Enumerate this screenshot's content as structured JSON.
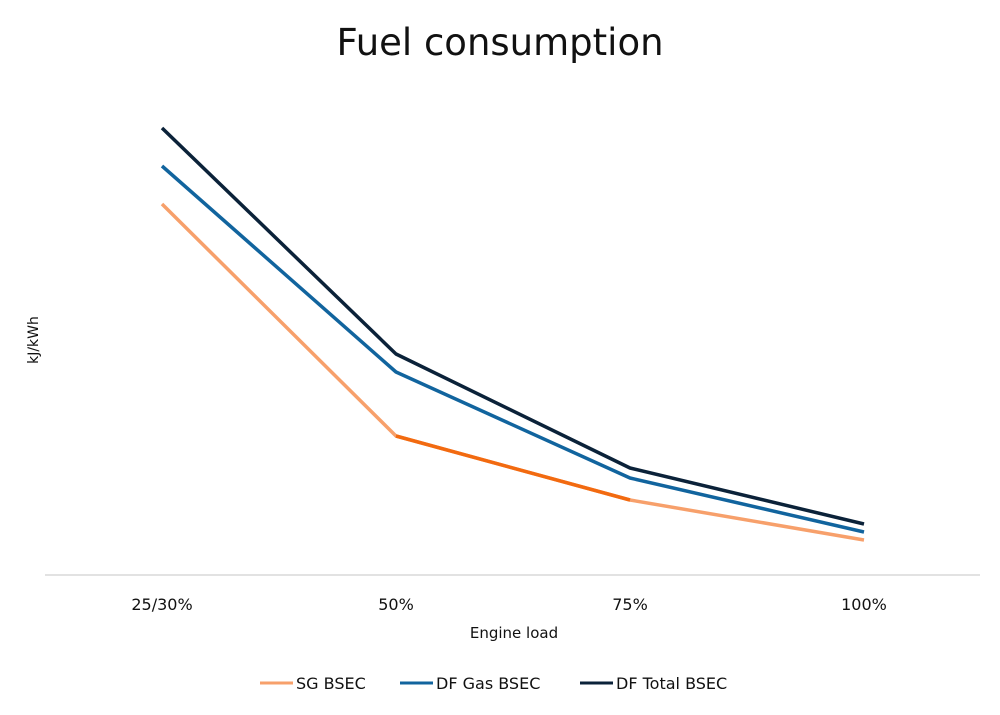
{
  "chart_data": {
    "type": "line",
    "title": "Fuel consumption",
    "xlabel": "Engine load",
    "ylabel": "kJ/kWh",
    "categories": [
      "25/30%",
      "50%",
      "75%",
      "100%"
    ],
    "y_ticks_shown": false,
    "ylim": [
      0,
      460
    ],
    "grid": false,
    "legend": "bottom",
    "series": [
      {
        "name": "SG BSEC",
        "color": "#f7a06b",
        "values": [
          371,
          139,
          75,
          35
        ],
        "highlight_segment": {
          "from": "50%",
          "to": "75%",
          "color": "#f26a10"
        }
      },
      {
        "name": "DF Gas BSEC",
        "color": "#11649e",
        "values": [
          409,
          203,
          97,
          43
        ]
      },
      {
        "name": "DF Total BSEC",
        "color": "#0b2239",
        "values": [
          447,
          221,
          107,
          51
        ]
      }
    ],
    "axis_color": "#d9d9d9"
  }
}
